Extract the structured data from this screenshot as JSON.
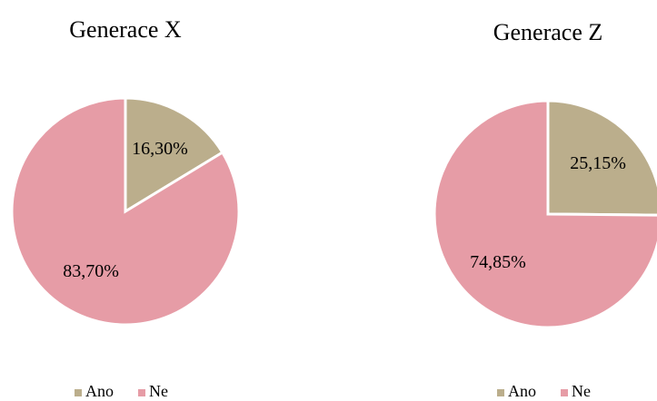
{
  "chart_data": [
    {
      "type": "pie",
      "title": "Generace X",
      "categories": [
        "Ano",
        "Ne"
      ],
      "values": [
        16.3,
        83.7
      ],
      "value_labels": [
        "16,30%",
        "83,70%"
      ],
      "colors": [
        "#bbae8c",
        "#e69ca6"
      ],
      "legend": "bottom"
    },
    {
      "type": "pie",
      "title": "Generace Z",
      "categories": [
        "Ano",
        "Ne"
      ],
      "values": [
        25.15,
        74.85
      ],
      "value_labels": [
        "25,15%",
        "74,85%"
      ],
      "colors": [
        "#bbae8c",
        "#e69ca6"
      ],
      "legend": "bottom"
    }
  ]
}
